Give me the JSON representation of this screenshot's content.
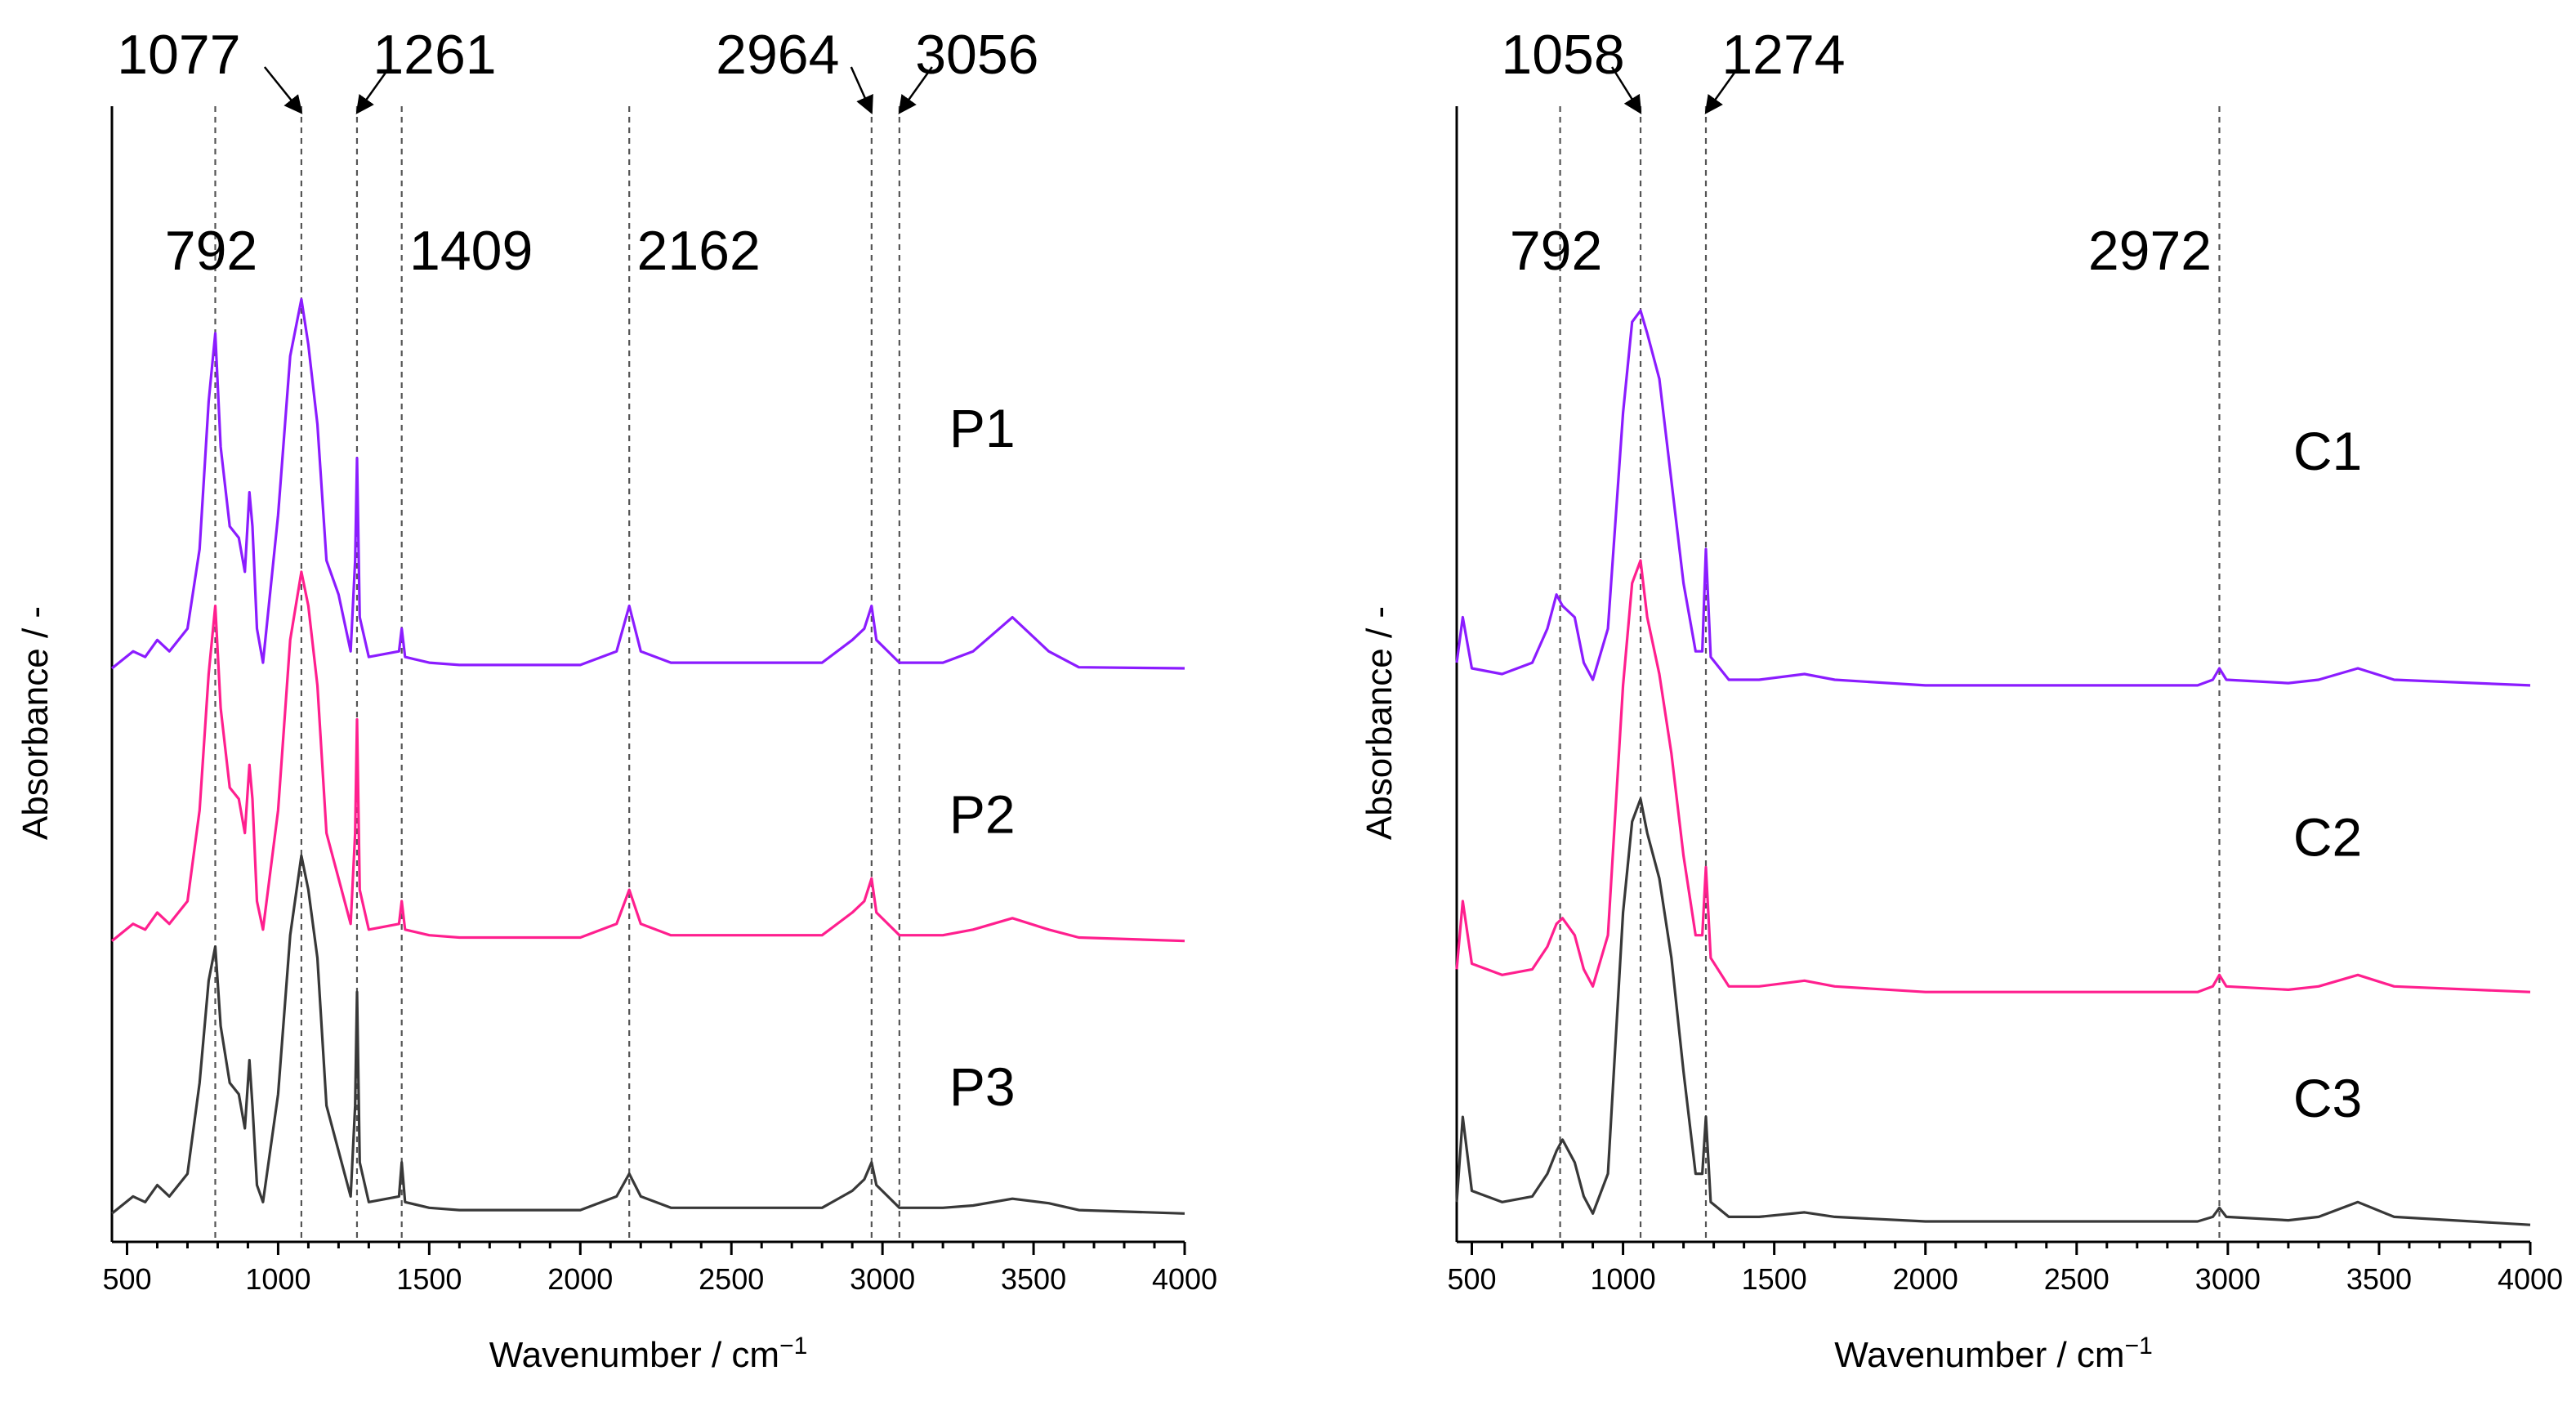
{
  "figure": {
    "title": ""
  },
  "chart_data": [
    {
      "type": "line",
      "id": "left",
      "title": "",
      "xlabel": "Wavenumber / cm",
      "xlabel_sup": "−1",
      "ylabel": "Absorbance / -",
      "xlim": [
        450,
        4000
      ],
      "xticks": [
        500,
        1000,
        1500,
        2000,
        2500,
        3000,
        3500,
        4000
      ],
      "tick_labels": [
        "500",
        "1000",
        "1500",
        "2000",
        "2500",
        "3000",
        "3500",
        "4000"
      ],
      "y_units": "arbitrary (stacked, offset spectra)",
      "ylim": [
        0,
        100
      ],
      "grid": false,
      "reference_lines": [
        792,
        1077,
        1261,
        1409,
        2162,
        2964,
        3056
      ],
      "peak_labels": [
        {
          "text": "1077",
          "x": 1077,
          "row": "top",
          "arrow": true
        },
        {
          "text": "1261",
          "x": 1261,
          "row": "top",
          "arrow": true
        },
        {
          "text": "2964",
          "x": 2964,
          "row": "top",
          "arrow": true
        },
        {
          "text": "3056",
          "x": 3056,
          "row": "top",
          "arrow": true
        },
        {
          "text": "792",
          "x": 792,
          "row": "mid",
          "arrow": false
        },
        {
          "text": "1409",
          "x": 1409,
          "row": "mid",
          "arrow": false
        },
        {
          "text": "2162",
          "x": 2162,
          "row": "mid",
          "arrow": false
        }
      ],
      "series": [
        {
          "name": "P1",
          "color": "#8b1cff",
          "baseline": 50.5,
          "label_x": 3330,
          "label_y": 70,
          "x": [
            450,
            520,
            560,
            600,
            640,
            700,
            740,
            770,
            792,
            810,
            840,
            870,
            890,
            905,
            915,
            930,
            950,
            1000,
            1040,
            1077,
            1100,
            1130,
            1160,
            1200,
            1240,
            1255,
            1261,
            1270,
            1300,
            1400,
            1409,
            1420,
            1500,
            1600,
            2000,
            2120,
            2162,
            2200,
            2300,
            2800,
            2900,
            2940,
            2964,
            2980,
            3056,
            3200,
            3300,
            3430,
            3550,
            3650,
            4000
          ],
          "y": [
            50.5,
            52,
            51.5,
            53,
            52,
            54,
            61,
            74,
            80,
            70,
            63,
            62,
            59,
            66,
            63,
            54,
            51,
            64,
            78,
            83,
            79,
            72,
            60,
            57,
            52,
            60,
            69,
            55,
            51.5,
            52,
            54,
            51.5,
            51,
            50.8,
            50.8,
            52,
            56,
            52,
            51,
            51,
            53,
            54,
            56,
            53,
            51,
            51,
            52,
            55,
            52,
            50.6,
            50.5
          ]
        },
        {
          "name": "P2",
          "color": "#ff1f8e",
          "baseline": 26.5,
          "label_x": 3330,
          "label_y": 36,
          "x": [
            450,
            520,
            560,
            600,
            640,
            700,
            740,
            770,
            792,
            810,
            840,
            870,
            890,
            905,
            915,
            930,
            950,
            1000,
            1040,
            1077,
            1100,
            1130,
            1160,
            1200,
            1240,
            1255,
            1261,
            1270,
            1300,
            1400,
            1409,
            1420,
            1500,
            1600,
            2000,
            2120,
            2162,
            2200,
            2300,
            2800,
            2900,
            2940,
            2964,
            2980,
            3056,
            3200,
            3300,
            3430,
            3550,
            3650,
            4000
          ],
          "y": [
            26.5,
            28,
            27.5,
            29,
            28,
            30,
            38,
            50,
            56,
            47,
            40,
            39,
            36,
            42,
            39,
            30,
            27.5,
            38,
            53,
            59,
            56,
            49,
            36,
            32,
            28,
            36,
            46,
            31,
            27.5,
            28,
            30,
            27.5,
            27,
            26.8,
            26.8,
            28,
            31,
            28,
            27,
            27,
            29,
            30,
            32,
            29,
            27,
            27,
            27.5,
            28.5,
            27.5,
            26.8,
            26.5
          ]
        },
        {
          "name": "P3",
          "color": "#383838",
          "baseline": 2.5,
          "label_x": 3330,
          "label_y": 12,
          "x": [
            450,
            520,
            560,
            600,
            640,
            700,
            740,
            770,
            792,
            810,
            840,
            870,
            890,
            905,
            915,
            930,
            950,
            1000,
            1040,
            1077,
            1100,
            1130,
            1160,
            1200,
            1240,
            1255,
            1261,
            1270,
            1300,
            1400,
            1409,
            1420,
            1500,
            1600,
            2000,
            2120,
            2162,
            2200,
            2300,
            2800,
            2900,
            2940,
            2964,
            2980,
            3056,
            3200,
            3300,
            3430,
            3550,
            3650,
            4000
          ],
          "y": [
            2.5,
            4,
            3.5,
            5,
            4,
            6,
            14,
            23,
            26,
            19,
            14,
            13,
            10,
            16,
            12,
            5,
            3.5,
            13,
            27,
            34,
            31,
            25,
            12,
            8,
            4,
            12,
            22,
            7,
            3.5,
            4,
            7,
            3.5,
            3,
            2.8,
            2.8,
            4,
            6,
            4,
            3,
            3,
            4.5,
            5.5,
            7,
            5,
            3,
            3,
            3.2,
            3.8,
            3.4,
            2.8,
            2.5
          ]
        }
      ]
    },
    {
      "type": "line",
      "id": "right",
      "title": "",
      "xlabel": "Wavenumber / cm",
      "xlabel_sup": "−1",
      "ylabel": "Absorbance / -",
      "xlim": [
        450,
        4000
      ],
      "xticks": [
        500,
        1000,
        1500,
        2000,
        2500,
        3000,
        3500,
        4000
      ],
      "tick_labels": [
        "500",
        "1000",
        "1500",
        "2000",
        "2500",
        "3000",
        "3500",
        "4000"
      ],
      "y_units": "arbitrary (stacked, offset spectra)",
      "ylim": [
        0,
        100
      ],
      "grid": false,
      "reference_lines": [
        792,
        1058,
        1274,
        2972
      ],
      "peak_labels": [
        {
          "text": "1058",
          "x": 1058,
          "row": "top",
          "arrow": true
        },
        {
          "text": "1274",
          "x": 1274,
          "row": "top",
          "arrow": true
        },
        {
          "text": "792",
          "x": 792,
          "row": "mid",
          "arrow": false
        },
        {
          "text": "2972",
          "x": 2972,
          "row": "mid",
          "arrow": false
        }
      ],
      "series": [
        {
          "name": "C1",
          "color": "#8b1cff",
          "baseline": 49,
          "label_x": 3330,
          "label_y": 68,
          "x": [
            450,
            470,
            500,
            600,
            700,
            750,
            780,
            800,
            840,
            870,
            900,
            950,
            1000,
            1030,
            1058,
            1080,
            1120,
            1160,
            1200,
            1240,
            1262,
            1274,
            1290,
            1350,
            1450,
            1600,
            1700,
            2000,
            2900,
            2950,
            2972,
            2995,
            3200,
            3300,
            3430,
            3550,
            4000
          ],
          "y": [
            51,
            55,
            50.5,
            50,
            51,
            54,
            57,
            56,
            55,
            51,
            49.5,
            54,
            73,
            81,
            82,
            80,
            76,
            67,
            58,
            52,
            52,
            61,
            51.5,
            49.5,
            49.5,
            50,
            49.5,
            49,
            49,
            49.5,
            50.5,
            49.5,
            49.2,
            49.5,
            50.5,
            49.5,
            49
          ]
        },
        {
          "name": "C2",
          "color": "#ff1f8e",
          "baseline": 22,
          "label_x": 3330,
          "label_y": 34,
          "x": [
            450,
            470,
            500,
            600,
            700,
            750,
            780,
            800,
            840,
            870,
            900,
            950,
            1000,
            1030,
            1058,
            1080,
            1120,
            1160,
            1200,
            1240,
            1262,
            1274,
            1290,
            1350,
            1450,
            1600,
            1700,
            2000,
            2900,
            2950,
            2972,
            2995,
            3200,
            3300,
            3430,
            3550,
            4000
          ],
          "y": [
            24,
            30,
            24.5,
            23.5,
            24,
            26,
            28,
            28.5,
            27,
            24,
            22.5,
            27,
            49,
            58,
            60,
            55,
            50,
            43,
            34,
            27,
            27,
            33,
            25,
            22.5,
            22.5,
            23,
            22.5,
            22,
            22,
            22.5,
            23.5,
            22.5,
            22.2,
            22.5,
            23.5,
            22.5,
            22
          ]
        },
        {
          "name": "C3",
          "color": "#383838",
          "baseline": 1.5,
          "label_x": 3330,
          "label_y": 11,
          "x": [
            450,
            470,
            500,
            600,
            700,
            750,
            780,
            800,
            840,
            870,
            900,
            950,
            1000,
            1030,
            1058,
            1080,
            1120,
            1160,
            1200,
            1240,
            1262,
            1274,
            1290,
            1350,
            1450,
            1600,
            1700,
            2000,
            2900,
            2950,
            2972,
            2995,
            3200,
            3300,
            3430,
            3550,
            4000
          ],
          "y": [
            3.5,
            11,
            4.5,
            3.5,
            4,
            6,
            8,
            9,
            7,
            4,
            2.5,
            6,
            29,
            37,
            39,
            36,
            32,
            25,
            15,
            6,
            6,
            11,
            3.5,
            2.2,
            2.2,
            2.6,
            2.2,
            1.8,
            1.8,
            2.2,
            3,
            2.2,
            1.9,
            2.2,
            3.5,
            2.2,
            1.5
          ]
        }
      ]
    }
  ]
}
